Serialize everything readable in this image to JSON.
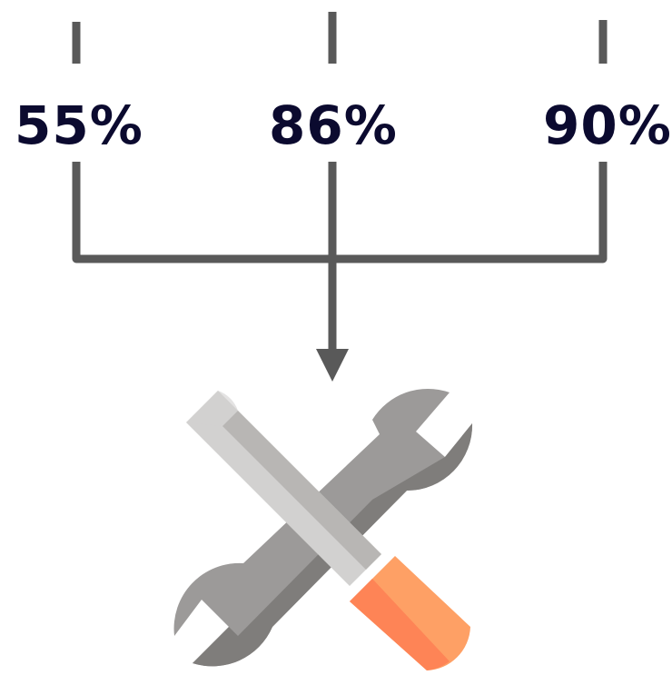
{
  "values": [
    {
      "label": "55%",
      "percent": 55
    },
    {
      "label": "86%",
      "percent": 86
    },
    {
      "label": "90%",
      "percent": 90
    }
  ],
  "icon": "wrench-and-screwdriver-tools-icon",
  "colors": {
    "text": "#0b0a2f",
    "connector": "#595959",
    "wrench_light": "#9c9a99",
    "wrench_dark": "#7f7d7b",
    "screwdriver_shaft_light": "#d2d1d0",
    "screwdriver_shaft_dark": "#b8b6b4",
    "handle_light": "#fea065",
    "handle_dark": "#fe8456",
    "background": "#ffffff"
  }
}
